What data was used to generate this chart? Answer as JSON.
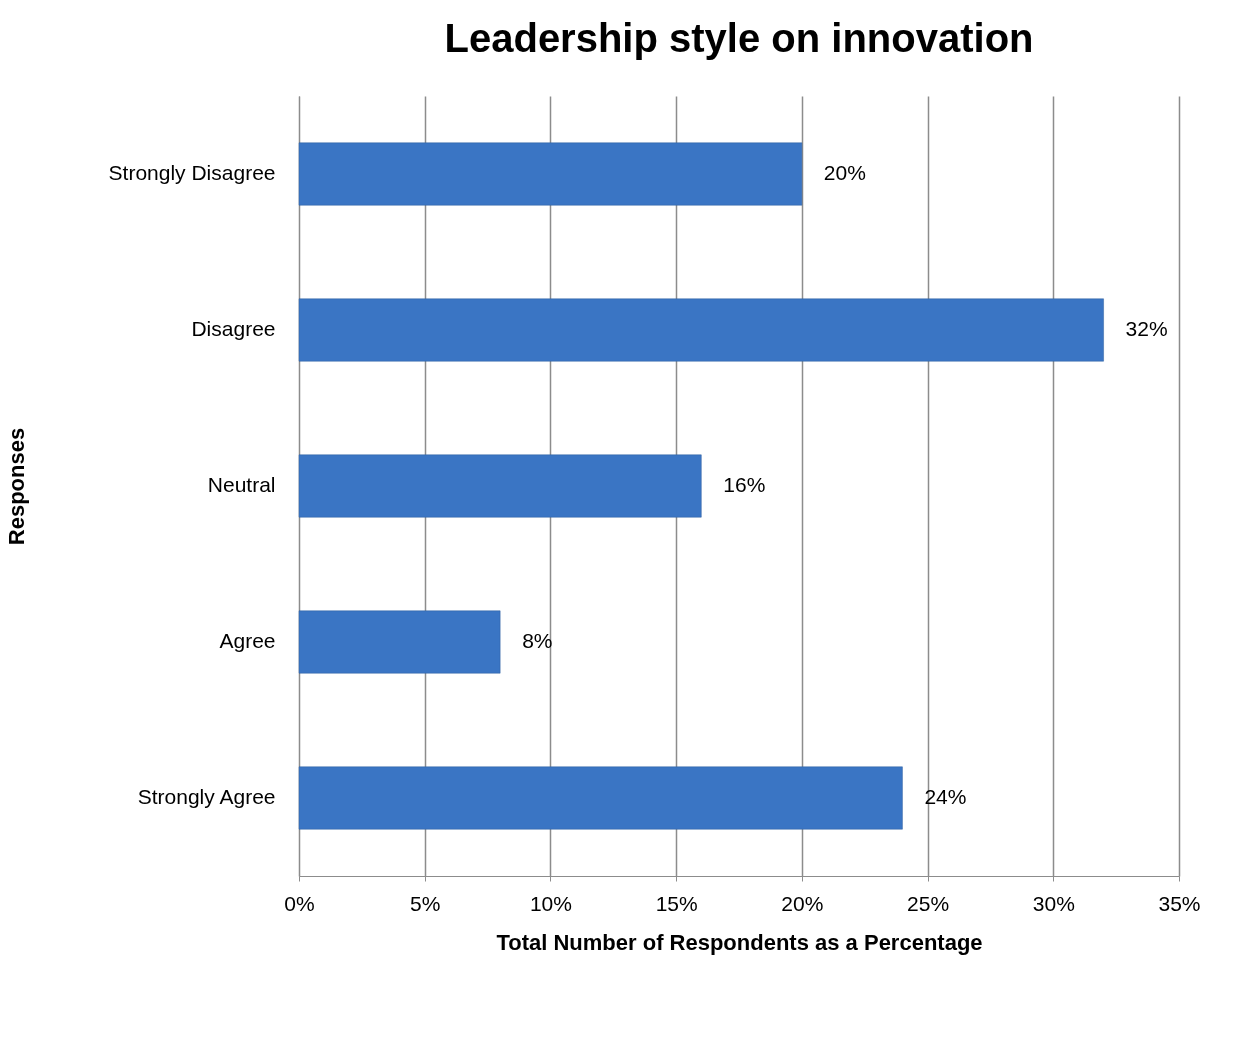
{
  "chart_data": {
    "type": "bar",
    "orientation": "horizontal",
    "title": "Leadership style on innovation",
    "xlabel": "Total Number of Respondents as a Percentage",
    "ylabel": "Responses",
    "categories": [
      "Strongly Disagree",
      "Disagree",
      "Neutral",
      "Agree",
      "Strongly Agree"
    ],
    "values": [
      20,
      32,
      16,
      8,
      24
    ],
    "value_labels": [
      "20%",
      "32%",
      "16%",
      "8%",
      "24%"
    ],
    "color": "#3a75c4",
    "xlim": [
      0,
      35
    ],
    "xticks": [
      {
        "value": 0,
        "label": "0%"
      },
      {
        "value": 5,
        "label": "5%"
      },
      {
        "value": 10,
        "label": "10%"
      },
      {
        "value": 15,
        "label": "15%"
      },
      {
        "value": 20,
        "label": "20%"
      },
      {
        "value": 25,
        "label": "25%"
      },
      {
        "value": 30,
        "label": "30%"
      },
      {
        "value": 35,
        "label": "35%"
      }
    ],
    "grid": "x"
  }
}
